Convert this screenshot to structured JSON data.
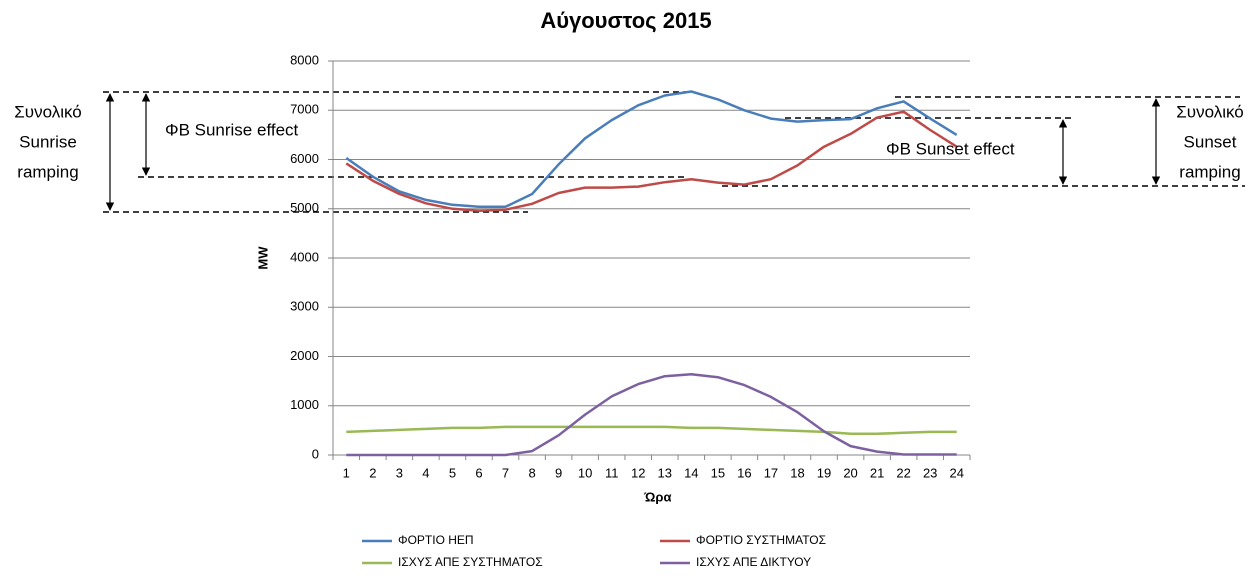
{
  "chart_data": {
    "type": "line",
    "title": "Αύγουστος 2015",
    "x_label": "Ώρα",
    "y_label": "MW",
    "categories": [
      "1",
      "2",
      "3",
      "4",
      "5",
      "6",
      "7",
      "8",
      "9",
      "10",
      "11",
      "12",
      "13",
      "14",
      "15",
      "16",
      "17",
      "18",
      "19",
      "20",
      "21",
      "22",
      "23",
      "24"
    ],
    "series": [
      {
        "name": "ΦΟΡΤΙΟ ΗΕΠ",
        "color": "#4a7ebb",
        "values": [
          6030,
          5650,
          5350,
          5180,
          5080,
          5040,
          5040,
          5300,
          5900,
          6430,
          6800,
          7100,
          7300,
          7380,
          7220,
          7000,
          6830,
          6770,
          6800,
          6820,
          7040,
          7180,
          6830,
          6500
        ]
      },
      {
        "name": "ΦΟΡΤΙΟ ΣΥΣΤΗΜΑΤΟΣ",
        "color": "#be4b48",
        "values": [
          5920,
          5570,
          5300,
          5110,
          5000,
          4960,
          4980,
          5100,
          5320,
          5430,
          5430,
          5450,
          5540,
          5600,
          5530,
          5490,
          5600,
          5880,
          6260,
          6520,
          6850,
          6970,
          6600,
          6260
        ]
      },
      {
        "name": "ΙΣΧΥΣ ΑΠΕ ΣΥΣΤΗΜΑΤΟΣ",
        "color": "#98b954",
        "values": [
          470,
          490,
          510,
          530,
          550,
          550,
          570,
          570,
          570,
          570,
          570,
          570,
          570,
          550,
          550,
          530,
          510,
          490,
          470,
          430,
          430,
          450,
          470,
          470
        ]
      },
      {
        "name": "ΙΣΧΥΣ ΑΠΕ ΔΙΚΤΥΟΥ",
        "color": "#7d60a0",
        "values": [
          0,
          0,
          0,
          0,
          0,
          0,
          0,
          80,
          400,
          820,
          1190,
          1440,
          1600,
          1640,
          1580,
          1420,
          1180,
          870,
          480,
          180,
          70,
          10,
          10,
          10
        ]
      }
    ],
    "ylim": [
      0,
      8000
    ],
    "yticks": [
      0,
      1000,
      2000,
      3000,
      4000,
      5000,
      6000,
      7000,
      8000
    ],
    "grid": true,
    "annotations": [
      {
        "lines": [
          "Συνολικό",
          "Sunrise",
          "ramping"
        ]
      },
      {
        "lines": [
          "ΦΒ Sunrise effect"
        ]
      },
      {
        "lines": [
          "ΦΒ Sunset effect"
        ]
      },
      {
        "lines": [
          "Συνολικό",
          "Sunset",
          "ramping"
        ]
      }
    ]
  }
}
